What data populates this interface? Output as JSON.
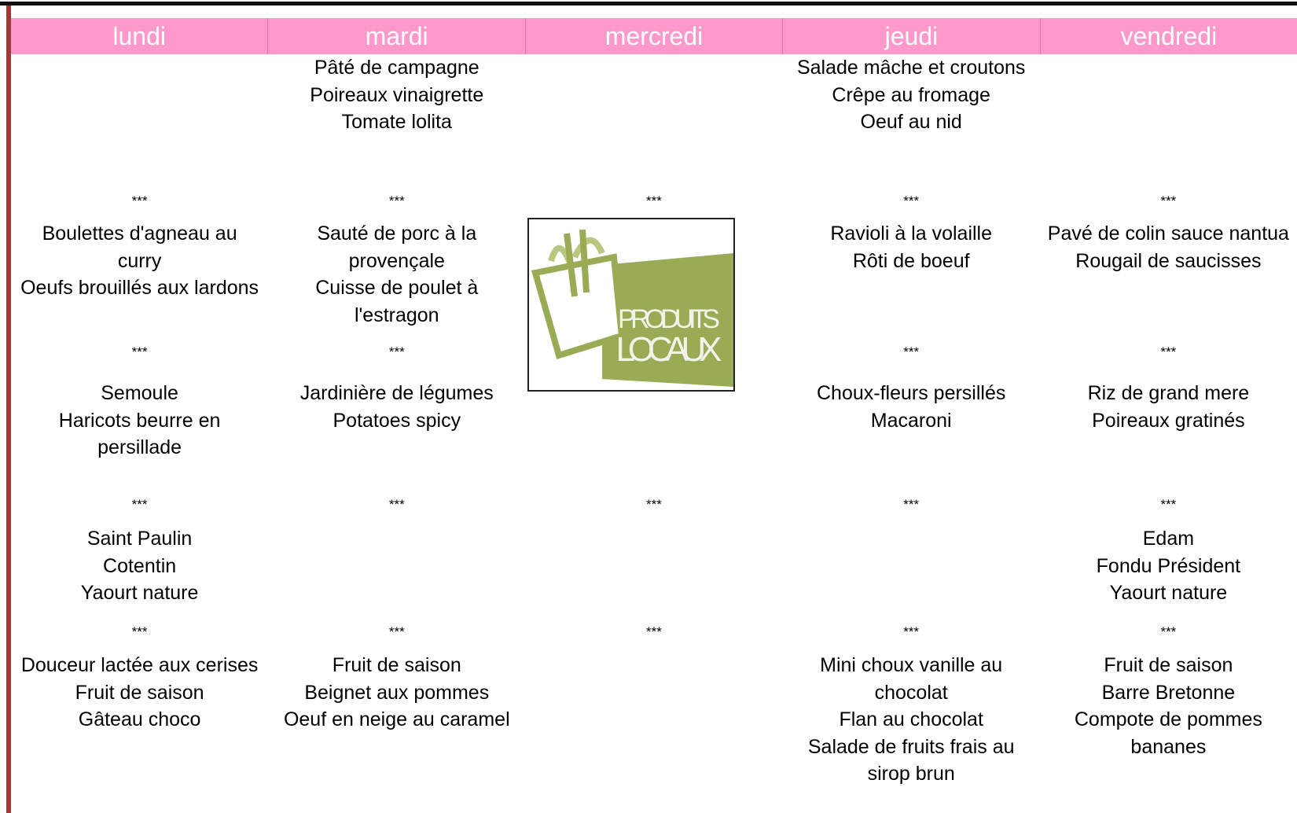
{
  "columns": [
    {
      "day": "lundi",
      "cells": {
        "sep1": "***",
        "plat": [
          "Boulettes d'agneau au curry",
          "Oeufs brouillés aux lardons"
        ],
        "sep2": "***",
        "accomp": [
          "Semoule",
          "Haricots beurre en persillade"
        ],
        "sep3": "***",
        "fromage": [
          "Saint Paulin",
          "Cotentin",
          "Yaourt nature"
        ],
        "sep4": "***",
        "dessert": [
          "Douceur lactée aux cerises",
          "Fruit de saison",
          "Gâteau choco"
        ]
      }
    },
    {
      "day": "mardi",
      "cells": {
        "entree": [
          "Pâté de campagne",
          "Poireaux vinaigrette",
          "Tomate lolita"
        ],
        "sep1": "***",
        "plat": [
          "Sauté de porc à la provençale",
          "Cuisse de poulet à l'estragon"
        ],
        "sep2": "***",
        "accomp": [
          "Jardinière de légumes",
          "Potatoes spicy"
        ],
        "sep3": "***",
        "sep4": "***",
        "dessert": [
          "Fruit de saison",
          "Beignet aux pommes",
          "Oeuf en neige au caramel"
        ]
      }
    },
    {
      "day": "mercredi",
      "cells": {
        "sep1": "***",
        "sep3": "***",
        "sep4": "***"
      }
    },
    {
      "day": "jeudi",
      "cells": {
        "entree": [
          "Salade mâche et croutons",
          "Crêpe au fromage",
          "Oeuf au nid"
        ],
        "sep1": "***",
        "plat": [
          "Ravioli à la volaille",
          "Rôti de boeuf"
        ],
        "sep2": "***",
        "accomp": [
          "Choux-fleurs persillés",
          "Macaroni"
        ],
        "sep3": "***",
        "sep4": "***",
        "dessert": [
          "Mini choux vanille au chocolat",
          "Flan au chocolat",
          "Salade de fruits frais au sirop brun"
        ]
      }
    },
    {
      "day": "vendredi",
      "cells": {
        "sep1": "***",
        "plat": [
          "Pavé de colin sauce nantua",
          "Rougail de saucisses"
        ],
        "sep2": "***",
        "accomp": [
          "Riz de grand mere",
          "Poireaux gratinés"
        ],
        "sep3": "***",
        "fromage": [
          "Edam",
          "Fondu Président",
          "Yaourt nature"
        ],
        "sep4": "***",
        "dessert": [
          "Fruit de saison",
          "Barre Bretonne",
          "Compote de pommes bananes"
        ]
      }
    }
  ],
  "logo": [
    "PRODUITS",
    "LOCAUX"
  ]
}
